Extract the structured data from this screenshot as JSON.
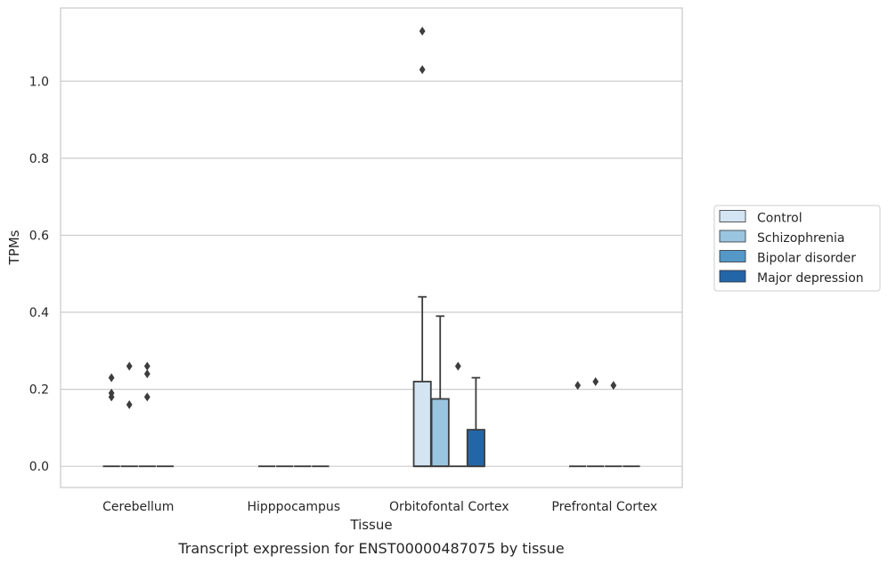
{
  "caption": "Transcript expression for ENST00000487075 by tissue",
  "chart_data": {
    "type": "box",
    "xlabel": "Tissue",
    "ylabel": "TPMs",
    "ylim": [
      -0.055,
      1.19
    ],
    "yticks": [
      0.0,
      0.2,
      0.4,
      0.6,
      0.8,
      1.0
    ],
    "ytick_labels": [
      "0.0",
      "0.2",
      "0.4",
      "0.6",
      "0.8",
      "1.0"
    ],
    "grid": "horizontal",
    "legend_position": "right",
    "categories": [
      "Cerebellum",
      "Hipppocampus",
      "Orbitofontal Cortex",
      "Prefrontal Cortex"
    ],
    "series": [
      {
        "name": "Control",
        "color": "#d3e4f3",
        "boxes": [
          {
            "q1": 0,
            "median": 0,
            "q3": 0,
            "whisker_low": 0,
            "whisker_high": 0,
            "outliers": [
              0.18,
              0.19,
              0.23
            ]
          },
          {
            "q1": 0,
            "median": 0,
            "q3": 0,
            "whisker_low": 0,
            "whisker_high": 0,
            "outliers": []
          },
          {
            "q1": 0,
            "median": 0,
            "q3": 0.22,
            "whisker_low": 0,
            "whisker_high": 0.44,
            "outliers": [
              1.03,
              1.13
            ]
          },
          {
            "q1": 0,
            "median": 0,
            "q3": 0,
            "whisker_low": 0,
            "whisker_high": 0,
            "outliers": [
              0.21
            ]
          }
        ]
      },
      {
        "name": "Schizophrenia",
        "color": "#9ac5e0",
        "boxes": [
          {
            "q1": 0,
            "median": 0,
            "q3": 0,
            "whisker_low": 0,
            "whisker_high": 0,
            "outliers": [
              0.16,
              0.26
            ]
          },
          {
            "q1": 0,
            "median": 0,
            "q3": 0,
            "whisker_low": 0,
            "whisker_high": 0,
            "outliers": []
          },
          {
            "q1": 0,
            "median": 0,
            "q3": 0.175,
            "whisker_low": 0,
            "whisker_high": 0.39,
            "outliers": []
          },
          {
            "q1": 0,
            "median": 0,
            "q3": 0,
            "whisker_low": 0,
            "whisker_high": 0,
            "outliers": [
              0.22
            ]
          }
        ]
      },
      {
        "name": "Bipolar disorder",
        "color": "#5498c8",
        "boxes": [
          {
            "q1": 0,
            "median": 0,
            "q3": 0,
            "whisker_low": 0,
            "whisker_high": 0,
            "outliers": [
              0.18,
              0.24,
              0.26
            ]
          },
          {
            "q1": 0,
            "median": 0,
            "q3": 0,
            "whisker_low": 0,
            "whisker_high": 0,
            "outliers": []
          },
          {
            "q1": 0,
            "median": 0,
            "q3": 0,
            "whisker_low": 0,
            "whisker_high": 0,
            "outliers": [
              0.26
            ]
          },
          {
            "q1": 0,
            "median": 0,
            "q3": 0,
            "whisker_low": 0,
            "whisker_high": 0,
            "outliers": [
              0.21
            ]
          }
        ]
      },
      {
        "name": "Major depression",
        "color": "#2366a8",
        "boxes": [
          {
            "q1": 0,
            "median": 0,
            "q3": 0,
            "whisker_low": 0,
            "whisker_high": 0,
            "outliers": []
          },
          {
            "q1": 0,
            "median": 0,
            "q3": 0,
            "whisker_low": 0,
            "whisker_high": 0,
            "outliers": []
          },
          {
            "q1": 0,
            "median": 0,
            "q3": 0.095,
            "whisker_low": 0,
            "whisker_high": 0.23,
            "outliers": []
          },
          {
            "q1": 0,
            "median": 0,
            "q3": 0,
            "whisker_low": 0,
            "whisker_high": 0,
            "outliers": []
          }
        ]
      }
    ]
  }
}
